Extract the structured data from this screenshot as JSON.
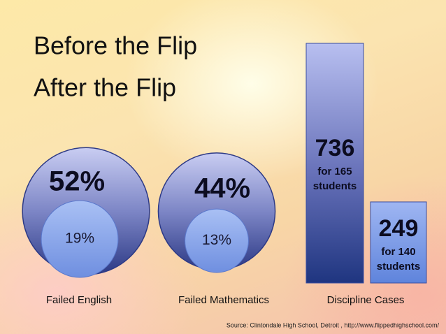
{
  "legend": [
    "Before the Flip",
    "After the Flip"
  ],
  "panels": [
    {
      "label": "Failed English",
      "before": 52,
      "before_label": "52%",
      "after": 19,
      "after_label": "19%"
    },
    {
      "label": "Failed Mathematics",
      "before": 44,
      "before_label": "44%",
      "after": 13,
      "after_label": "13%"
    }
  ],
  "discipline": {
    "label": "Discipline Cases",
    "before": 736,
    "before_note": [
      "for 165",
      "students"
    ],
    "after": 249,
    "after_note": [
      "for 140",
      "students"
    ]
  },
  "source": "Source: Clintondale High School, Detroit , http://www.flippedhighschool.com/"
}
